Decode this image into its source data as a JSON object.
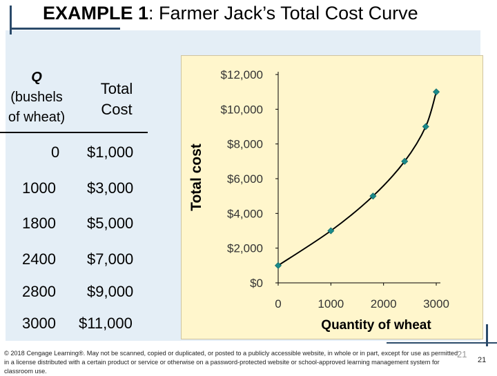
{
  "slide": {
    "title_lead": "EXAMPLE 1",
    "title_rest": ":  Farmer Jack’s Total Cost Curve",
    "footer": "© 2018 Cengage Learning®. May not be scanned, copied or duplicated, or posted to a publicly accessible website, in whole or in part, except for use as permitted in a license distributed with a certain product or service or otherwise on a password-protected website or school-approved learning management system for classroom use.",
    "slide_number_faint": "21",
    "slide_number": "21"
  },
  "table": {
    "head_q_1": "Q",
    "head_q_2": "(bushels",
    "head_q_3": "of wheat)",
    "head_tc_1": "Total",
    "head_tc_2": "Cost",
    "rows": [
      {
        "q": "0",
        "tc": "$1,000"
      },
      {
        "q": "1000",
        "tc": "$3,000"
      },
      {
        "q": "1800",
        "tc": "$5,000"
      },
      {
        "q": "2400",
        "tc": "$7,000"
      },
      {
        "q": "2800",
        "tc": "$9,000"
      },
      {
        "q": "3000",
        "tc": "$11,000"
      }
    ]
  },
  "chart_data": {
    "type": "line",
    "x": [
      0,
      1000,
      1800,
      2400,
      2800,
      3000
    ],
    "y": [
      1000,
      3000,
      5000,
      7000,
      9000,
      11000
    ],
    "xlabel": "Quantity of wheat",
    "ylabel": "Total cost",
    "xlim": [
      0,
      3000
    ],
    "ylim": [
      0,
      12000
    ],
    "x_ticks": [
      0,
      1000,
      2000,
      3000
    ],
    "x_tick_labels": [
      "0",
      "1000",
      "2000",
      "3000"
    ],
    "y_ticks": [
      0,
      2000,
      4000,
      6000,
      8000,
      10000,
      12000
    ],
    "y_tick_labels": [
      "$0",
      "$2,000",
      "$4,000",
      "$6,000",
      "$8,000",
      "$10,000",
      "$12,000"
    ],
    "grid": false,
    "line_color": "#000000",
    "marker_color": "#1a8a8a"
  }
}
